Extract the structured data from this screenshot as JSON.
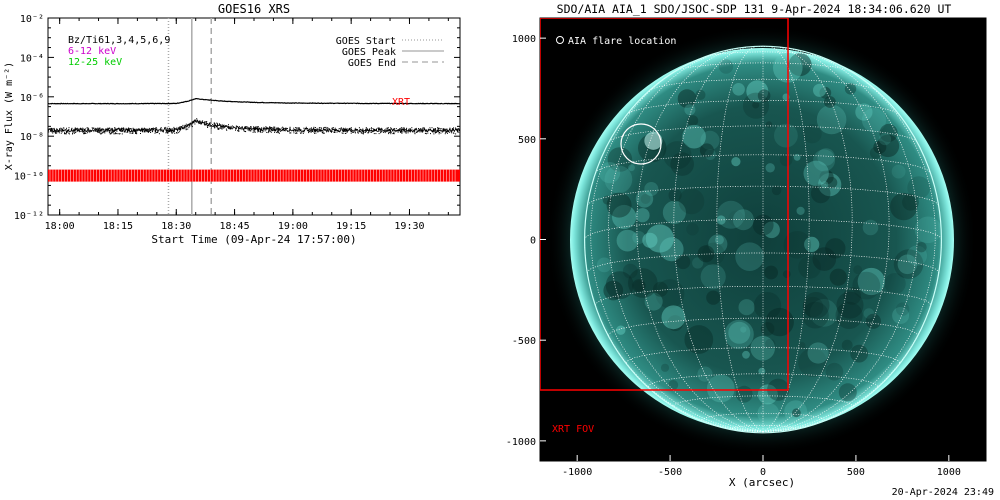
{
  "chart_data": [
    {
      "type": "line",
      "title": "GOES16 XRS",
      "xlabel": "Start Time (09-Apr-24 17:57:00)",
      "ylabel": "X-ray Flux (W m⁻²)",
      "y_scale": "log",
      "ylim": [
        1e-12,
        0.01
      ],
      "xlim": [
        "17:57",
        "19:43"
      ],
      "x_ticks": [
        "18:00",
        "18:15",
        "18:30",
        "18:45",
        "19:00",
        "19:15",
        "19:30"
      ],
      "y_ticks": [
        "10⁻²",
        "10⁻⁴",
        "10⁻⁶",
        "10⁻⁸",
        "10⁻¹⁰",
        "10⁻¹²"
      ],
      "legend_text": [
        {
          "text": "Bz/Ti61,3,4,5,6,9",
          "color": "#000000"
        },
        {
          "text": "6-12 keV",
          "color": "#cc00cc"
        },
        {
          "text": "12-25 keV",
          "color": "#00cc00"
        }
      ],
      "legend_lines": [
        {
          "label": "GOES Start",
          "style": "dotted",
          "color": "#aaaaaa"
        },
        {
          "label": "GOES Peak",
          "style": "solid",
          "color": "#aaaaaa"
        },
        {
          "label": "GOES End",
          "style": "dashed",
          "color": "#aaaaaa"
        }
      ],
      "markers": {
        "start": "18:28",
        "peak": "18:34",
        "end": "18:39"
      },
      "series": [
        {
          "name": "",
          "color": "#000000",
          "x": [
            "17:57",
            "18:20",
            "18:30",
            "18:33",
            "18:35",
            "18:38",
            "18:42",
            "18:50",
            "19:00",
            "19:20",
            "19:43"
          ],
          "y": [
            4.5e-07,
            4.5e-07,
            4.6e-07,
            6e-07,
            8e-07,
            7e-07,
            6e-07,
            5.2e-07,
            4.8e-07,
            4.6e-07,
            4.5e-07
          ]
        },
        {
          "name": "",
          "color": "#000000",
          "x": [
            "17:57",
            "18:20",
            "18:30",
            "18:33",
            "18:35",
            "18:38",
            "18:42",
            "18:50",
            "19:00",
            "19:20",
            "19:43"
          ],
          "y": [
            2e-08,
            2e-08,
            2.1e-08,
            3.5e-08,
            6e-08,
            4e-08,
            3e-08,
            2.3e-08,
            2.1e-08,
            2e-08,
            2e-08
          ]
        }
      ],
      "xrt_label": "XRT",
      "xrt_color": "#ff0000",
      "xrt_level": 1e-10
    },
    {
      "type": "image",
      "title": "SDO/AIA AIA_1 SDO/JSOC-SDP 131  9-Apr-2024 18:34:06.620 UT",
      "xlabel": "X (arcsec)",
      "ylabel": "",
      "xlim": [
        -1200,
        1200
      ],
      "ylim": [
        -1100,
        1100
      ],
      "x_ticks": [
        -1000,
        -500,
        0,
        500,
        1000
      ],
      "y_ticks": [
        -1000,
        -500,
        0,
        500,
        1000
      ],
      "flare_legend": "AIA flare location",
      "flare_location": [
        -590,
        490
      ],
      "flare_radius": 100,
      "solar_radius": 960,
      "xrt_fov_label": "XRT FOV",
      "xrt_fov": {
        "x": [
          -1100,
          130
        ],
        "y": [
          -750,
          1100
        ]
      },
      "colors": {
        "disk": "#1a5e58",
        "limb": "#7fe8de",
        "fov": "#ff0000",
        "grid": "#ffffff"
      }
    }
  ],
  "footer": "20-Apr-2024 23:49"
}
